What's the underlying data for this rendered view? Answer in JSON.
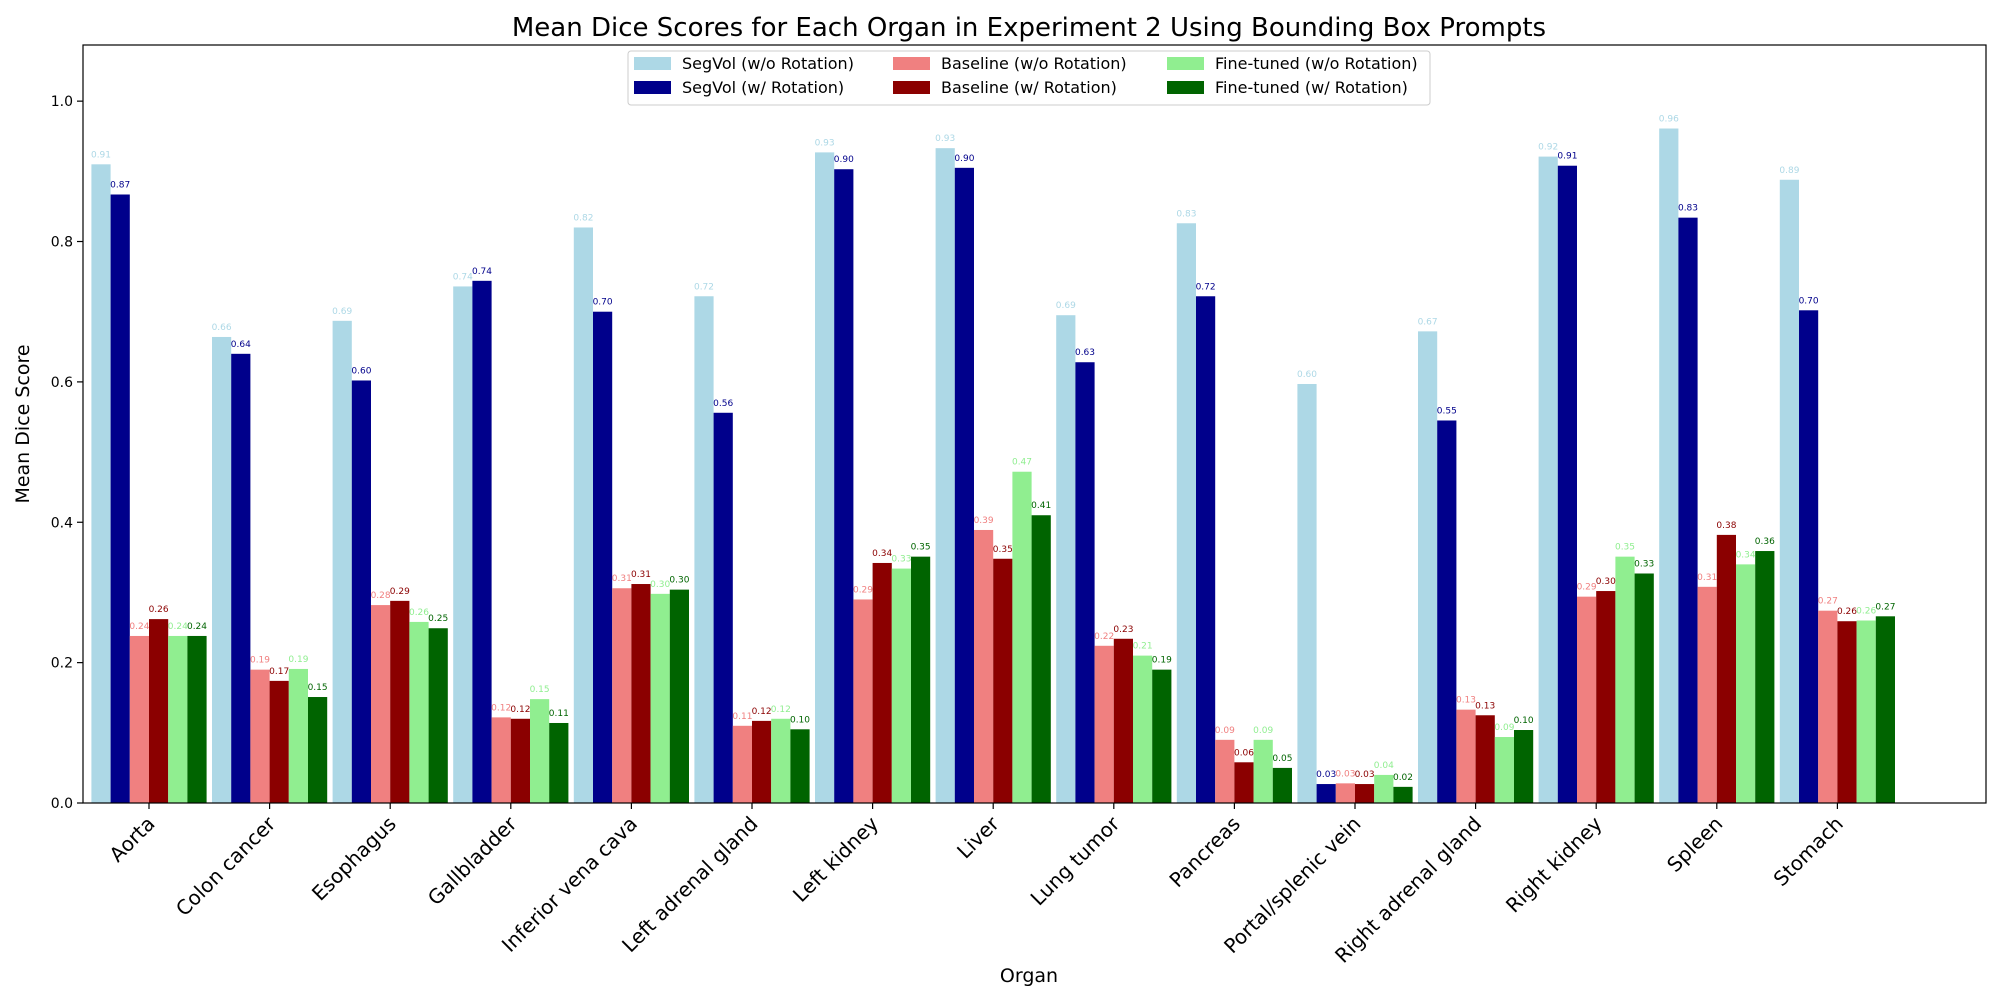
{
  "chart_data": {
    "type": "bar",
    "title": "Mean Dice Scores for Each Organ in Experiment 2 Using Bounding Box Prompts",
    "xlabel": "Organ",
    "ylabel": "Mean Dice Score",
    "ylim": [
      0,
      1.08
    ],
    "yticks": [
      "0.0",
      "0.2",
      "0.4",
      "0.6",
      "0.8",
      "1.0"
    ],
    "grid": false,
    "legend_position": "top-center",
    "categories": [
      "Aorta",
      "Colon cancer",
      "Esophagus",
      "Gallbladder",
      "Inferior vena cava",
      "Left adrenal gland",
      "Left kidney",
      "Liver",
      "Lung tumor",
      "Pancreas",
      "Portal/splenic vein",
      "Right adrenal gland",
      "Right kidney",
      "Spleen",
      "Stomach"
    ],
    "series": [
      {
        "name": "SegVol (w/o Rotation)",
        "color": "#add8e6",
        "values": [
          0.91,
          0.664,
          0.687,
          0.736,
          0.82,
          0.722,
          0.927,
          0.933,
          0.695,
          0.826,
          0.597,
          0.672,
          0.921,
          0.961,
          0.888
        ],
        "labels": [
          "0.91",
          "0.66",
          "0.69",
          "0.74",
          "0.82",
          "0.72",
          "0.93",
          "0.93",
          "0.69",
          "0.83",
          "0.60",
          "0.67",
          "0.92",
          "0.96",
          "0.89"
        ]
      },
      {
        "name": "SegVol (w/ Rotation)",
        "color": "#00008b",
        "values": [
          0.867,
          0.64,
          0.602,
          0.744,
          0.7,
          0.556,
          0.903,
          0.905,
          0.628,
          0.722,
          0.027,
          0.545,
          0.908,
          0.834,
          0.702
        ],
        "labels": [
          "0.87",
          "0.64",
          "0.60",
          "0.74",
          "0.70",
          "0.56",
          "0.90",
          "0.90",
          "0.63",
          "0.72",
          "0.03",
          "0.55",
          "0.91",
          "0.83",
          "0.70"
        ]
      },
      {
        "name": "Baseline (w/o Rotation)",
        "color": "#f08080",
        "values": [
          0.238,
          0.19,
          0.282,
          0.122,
          0.306,
          0.11,
          0.29,
          0.389,
          0.224,
          0.09,
          0.028,
          0.133,
          0.294,
          0.308,
          0.274
        ],
        "labels": [
          "0.24",
          "0.19",
          "0.28",
          "0.12",
          "0.31",
          "0.11",
          "0.29",
          "0.39",
          "0.22",
          "0.09",
          "0.03",
          "0.13",
          "0.29",
          "0.31",
          "0.27"
        ]
      },
      {
        "name": "Baseline (w/ Rotation)",
        "color": "#8b0000",
        "values": [
          0.262,
          0.174,
          0.288,
          0.12,
          0.312,
          0.117,
          0.342,
          0.348,
          0.234,
          0.058,
          0.027,
          0.125,
          0.302,
          0.382,
          0.259
        ],
        "labels": [
          "0.26",
          "0.17",
          "0.29",
          "0.12",
          "0.31",
          "0.12",
          "0.34",
          "0.35",
          "0.23",
          "0.06",
          "0.03",
          "0.13",
          "0.30",
          "0.38",
          "0.26"
        ]
      },
      {
        "name": "Fine-tuned (w/o Rotation)",
        "color": "#90ee90",
        "values": [
          0.238,
          0.191,
          0.258,
          0.148,
          0.298,
          0.12,
          0.334,
          0.472,
          0.21,
          0.09,
          0.04,
          0.094,
          0.351,
          0.34,
          0.26
        ],
        "labels": [
          "0.24",
          "0.19",
          "0.26",
          "0.15",
          "0.30",
          "0.12",
          "0.33",
          "0.47",
          "0.21",
          "0.09",
          "0.04",
          "0.09",
          "0.35",
          "0.34",
          "0.26"
        ]
      },
      {
        "name": "Fine-tuned (w/ Rotation)",
        "color": "#006400",
        "values": [
          0.238,
          0.151,
          0.249,
          0.114,
          0.304,
          0.105,
          0.351,
          0.41,
          0.19,
          0.05,
          0.023,
          0.104,
          0.327,
          0.359,
          0.266
        ],
        "labels": [
          "0.24",
          "0.15",
          "0.25",
          "0.11",
          "0.30",
          "0.10",
          "0.35",
          "0.41",
          "0.19",
          "0.05",
          "0.02",
          "0.10",
          "0.33",
          "0.36",
          "0.27"
        ]
      }
    ]
  }
}
